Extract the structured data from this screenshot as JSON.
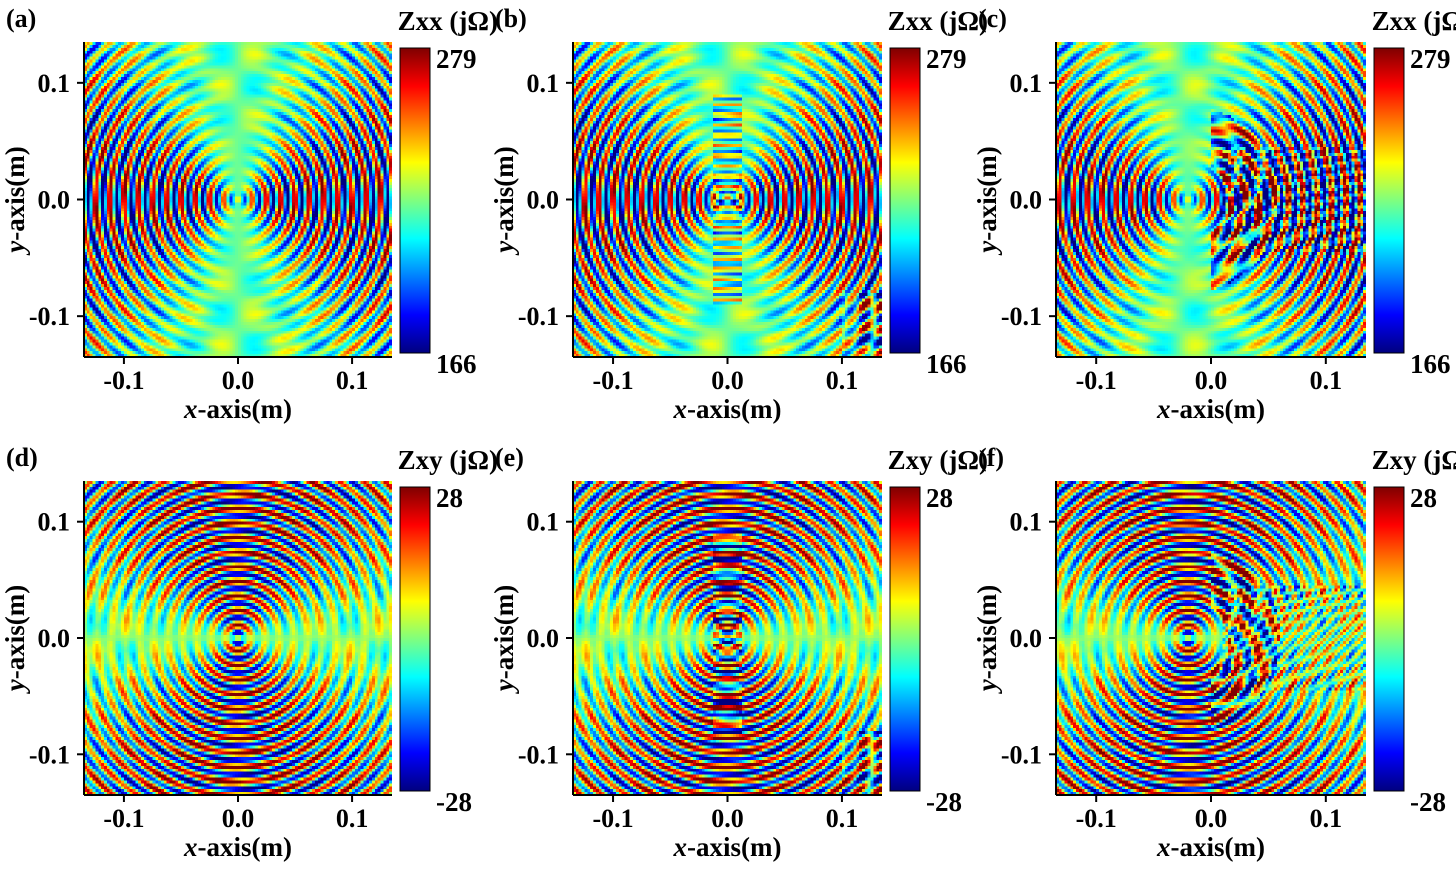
{
  "chart_data": [
    {
      "type": "heatmap",
      "panel_label": "(a)",
      "colorbar_title": "Zxx (jΩ)",
      "colorbar_max": "279",
      "colorbar_min": "166",
      "xlabel_italic": "x",
      "xlabel_rest": "-axis(m)",
      "ylabel_italic": "y",
      "ylabel_rest": "-axis(m)",
      "xticks": [
        "-0.1",
        "0.0",
        "0.1"
      ],
      "yticks": [
        "0.1",
        "0.0",
        "-0.1"
      ],
      "xlim": [
        -0.135,
        0.135
      ],
      "ylim": [
        -0.135,
        0.135
      ],
      "zlim": [
        166,
        279
      ],
      "component": "xx",
      "source_x": 0.0,
      "pattern": "symmetric"
    },
    {
      "type": "heatmap",
      "panel_label": "(b)",
      "colorbar_title": "Zxx (jΩ)",
      "colorbar_max": "279",
      "colorbar_min": "166",
      "xlabel_italic": "x",
      "xlabel_rest": "-axis(m)",
      "ylabel_italic": "y",
      "ylabel_rest": "-axis(m)",
      "xticks": [
        "-0.1",
        "0.0",
        "0.1"
      ],
      "yticks": [
        "0.1",
        "0.0",
        "-0.1"
      ],
      "xlim": [
        -0.135,
        0.135
      ],
      "ylim": [
        -0.135,
        0.135
      ],
      "zlim": [
        166,
        279
      ],
      "component": "xx",
      "source_x": 0.0,
      "pattern": "slightly perturbed"
    },
    {
      "type": "heatmap",
      "panel_label": "(c)",
      "colorbar_title": "Zxx (jΩ)",
      "colorbar_max": "279",
      "colorbar_min": "166",
      "xlabel_italic": "x",
      "xlabel_rest": "-axis(m)",
      "ylabel_italic": "y",
      "ylabel_rest": "-axis(m)",
      "xticks": [
        "-0.1",
        "0.0",
        "0.1"
      ],
      "yticks": [
        "0.1",
        "0.0",
        "-0.1"
      ],
      "xlim": [
        -0.135,
        0.135
      ],
      "ylim": [
        -0.135,
        0.135
      ],
      "zlim": [
        166,
        279
      ],
      "component": "xx",
      "source_x": -0.02,
      "pattern": "scattered right side"
    },
    {
      "type": "heatmap",
      "panel_label": "(d)",
      "colorbar_title": "Zxy (jΩ)",
      "colorbar_max": "28",
      "colorbar_min": "-28",
      "xlabel_italic": "x",
      "xlabel_rest": "-axis(m)",
      "ylabel_italic": "y",
      "ylabel_rest": "-axis(m)",
      "xticks": [
        "-0.1",
        "0.0",
        "0.1"
      ],
      "yticks": [
        "0.1",
        "0.0",
        "-0.1"
      ],
      "xlim": [
        -0.135,
        0.135
      ],
      "ylim": [
        -0.135,
        0.135
      ],
      "zlim": [
        -28,
        28
      ],
      "component": "xy",
      "source_x": 0.0,
      "pattern": "symmetric"
    },
    {
      "type": "heatmap",
      "panel_label": "(e)",
      "colorbar_title": "Zxy (jΩ)",
      "colorbar_max": "28",
      "colorbar_min": "-28",
      "xlabel_italic": "x",
      "xlabel_rest": "-axis(m)",
      "ylabel_italic": "y",
      "ylabel_rest": "-axis(m)",
      "xticks": [
        "-0.1",
        "0.0",
        "0.1"
      ],
      "yticks": [
        "0.1",
        "0.0",
        "-0.1"
      ],
      "xlim": [
        -0.135,
        0.135
      ],
      "ylim": [
        -0.135,
        0.135
      ],
      "zlim": [
        -28,
        28
      ],
      "component": "xy",
      "source_x": 0.0,
      "pattern": "slightly perturbed"
    },
    {
      "type": "heatmap",
      "panel_label": "(f)",
      "colorbar_title": "Zxy (jΩ)",
      "colorbar_max": "28",
      "colorbar_min": "-28",
      "xlabel_italic": "x",
      "xlabel_rest": "-axis(m)",
      "ylabel_italic": "y",
      "ylabel_rest": "-axis(m)",
      "xticks": [
        "-0.1",
        "0.0",
        "0.1"
      ],
      "yticks": [
        "0.1",
        "0.0",
        "-0.1"
      ],
      "xlim": [
        -0.135,
        0.135
      ],
      "ylim": [
        -0.135,
        0.135
      ],
      "zlim": [
        -28,
        28
      ],
      "component": "xy",
      "source_x": -0.02,
      "pattern": "scattered right side"
    }
  ],
  "colormap": "jet",
  "colormap_stops": [
    "#00007f",
    "#0000ff",
    "#007fff",
    "#00ffff",
    "#7fff7f",
    "#ffff00",
    "#ff7f00",
    "#ff0000",
    "#7f0000"
  ]
}
